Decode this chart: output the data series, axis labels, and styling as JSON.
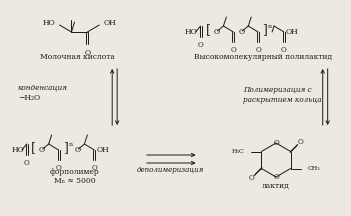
{
  "bg_color": "#ede8e0",
  "text_color": "#1a1a1a",
  "labels": {
    "lactic_acid": "Молочная кислота",
    "high_mol": "Высокомолекулярный полилактид",
    "condensation": "конденсация",
    "minus_water": "−H₂O",
    "polymerization": "Полимеризация с\nраскрытием кольца",
    "depolymerization": "деполимеризация",
    "prepolymer": "форполимер",
    "mn": "Mₙ ≈ 5000",
    "lactide": "лактид"
  },
  "figsize": [
    3.51,
    2.16
  ],
  "dpi": 100
}
